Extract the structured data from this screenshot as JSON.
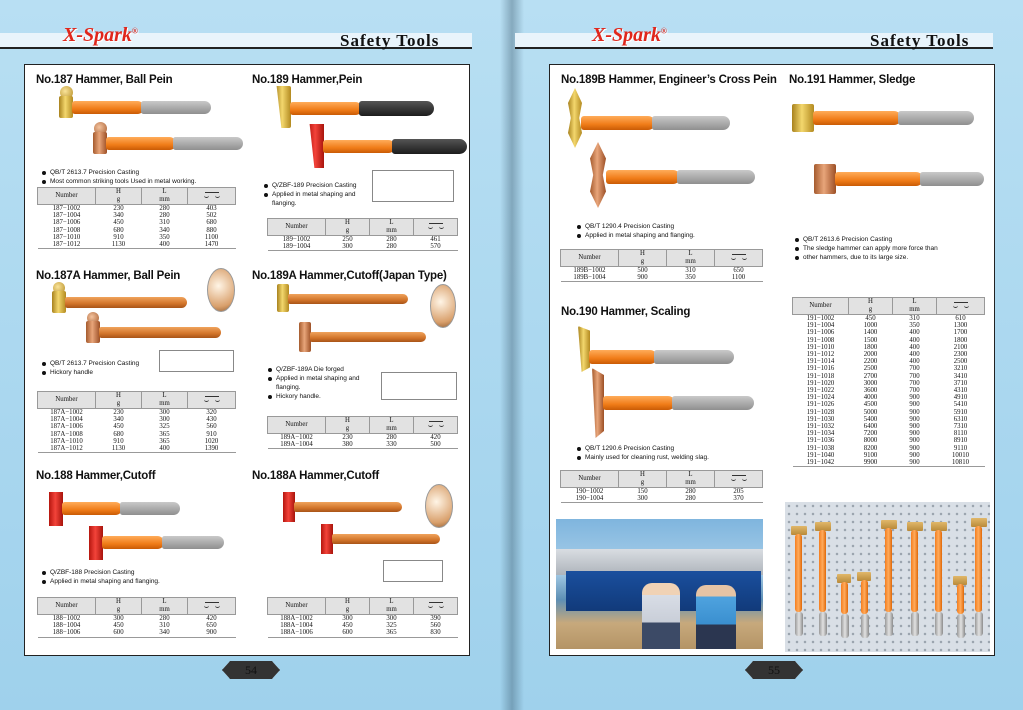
{
  "left_page": {
    "logo": "X-Spark",
    "logo_mark": "®",
    "header": "Safety Tools",
    "page_number": "54",
    "panels": [
      {
        "title": "No.187 Hammer, Ball Pein",
        "bullets": [
          "QB/T 2613.7 Precision Casting",
          "Most common striking tools Used in metal working."
        ],
        "headers": [
          [
            "Number",
            ""
          ],
          [
            "H",
            "g"
          ],
          [
            "L",
            "mm"
          ],
          [
            "",
            ""
          ]
        ],
        "rows": [
          [
            "187−1002",
            "230",
            "280",
            "403"
          ],
          [
            "187−1004",
            "340",
            "280",
            "502"
          ],
          [
            "187−1006",
            "450",
            "310",
            "680"
          ],
          [
            "187−1008",
            "680",
            "340",
            "880"
          ],
          [
            "187−1010",
            "910",
            "350",
            "1100"
          ],
          [
            "187−1012",
            "1130",
            "400",
            "1470"
          ]
        ]
      },
      {
        "title": "No.189 Hammer,Pein",
        "bullets": [
          "Q/ZBF-189  Precision Casting",
          "Applied in metal shaping and",
          "flanging."
        ],
        "headers": [
          [
            "Number",
            ""
          ],
          [
            "H",
            "g"
          ],
          [
            "L",
            "mm"
          ],
          [
            "",
            ""
          ]
        ],
        "rows": [
          [
            "189−1002",
            "250",
            "280",
            "461"
          ],
          [
            "189−1004",
            "300",
            "280",
            "570"
          ]
        ]
      },
      {
        "title": "No.187A Hammer, Ball Pein",
        "bullets": [
          "QB/T 2613.7  Precision Casting",
          "Hickory handle"
        ],
        "headers": [
          [
            "Number",
            ""
          ],
          [
            "H",
            "g"
          ],
          [
            "L",
            "mm"
          ],
          [
            "",
            ""
          ]
        ],
        "rows": [
          [
            "187A−1002",
            "230",
            "300",
            "320"
          ],
          [
            "187A−1004",
            "340",
            "300",
            "430"
          ],
          [
            "187A−1006",
            "450",
            "325",
            "560"
          ],
          [
            "187A−1008",
            "680",
            "365",
            "910"
          ],
          [
            "187A−1010",
            "910",
            "365",
            "1020"
          ],
          [
            "187A−1012",
            "1130",
            "400",
            "1390"
          ]
        ]
      },
      {
        "title": "No.189A Hammer,Cutoff(Japan Type)",
        "bullets": [
          "Q/ZBF-189A  Die forged",
          "Applied in metal shaping and",
          "flanging.",
          "Hickory handle."
        ],
        "headers": [
          [
            "Number",
            ""
          ],
          [
            "H",
            "g"
          ],
          [
            "L",
            "mm"
          ],
          [
            "",
            ""
          ]
        ],
        "rows": [
          [
            "189A−1002",
            "230",
            "280",
            "420"
          ],
          [
            "189A−1004",
            "380",
            "330",
            "500"
          ]
        ]
      },
      {
        "title": "No.188 Hammer,Cutoff",
        "bullets": [
          "Q/ZBF-188   Precision Casting",
          "Applied in metal shaping and flanging."
        ],
        "headers": [
          [
            "Number",
            ""
          ],
          [
            "H",
            "g"
          ],
          [
            "L",
            "mm"
          ],
          [
            "",
            ""
          ]
        ],
        "rows": [
          [
            "188−1002",
            "300",
            "280",
            "420"
          ],
          [
            "188−1004",
            "450",
            "310",
            "650"
          ],
          [
            "188−1006",
            "600",
            "340",
            "900"
          ]
        ]
      },
      {
        "title": "No.188A Hammer,Cutoff",
        "bullets": [],
        "headers": [
          [
            "Number",
            ""
          ],
          [
            "H",
            "g"
          ],
          [
            "L",
            "mm"
          ],
          [
            "",
            ""
          ]
        ],
        "rows": [
          [
            "188A−1002",
            "300",
            "300",
            "390"
          ],
          [
            "188A−1004",
            "450",
            "325",
            "560"
          ],
          [
            "188A−1006",
            "600",
            "365",
            "830"
          ]
        ]
      }
    ]
  },
  "right_page": {
    "logo": "X-Spark",
    "logo_mark": "®",
    "header": "Safety Tools",
    "page_number": "55",
    "panels": [
      {
        "title": "No.189B Hammer, Engineer’s Cross Pein",
        "bullets": [
          "QB/T 1290.4   Precision Casting",
          "Applied in metal shaping and flanging."
        ],
        "headers": [
          [
            "Number",
            ""
          ],
          [
            "H",
            "g"
          ],
          [
            "L",
            "mm"
          ],
          [
            "",
            ""
          ]
        ],
        "rows": [
          [
            "189B−1002",
            "500",
            "310",
            "650"
          ],
          [
            "189B−1004",
            "900",
            "350",
            "1100"
          ]
        ]
      },
      {
        "title": "No.191 Hammer, Sledge",
        "bullets": [
          "QB/T 2613.6       Precision Casting",
          "The sledge hammer can apply more force than",
          "other hammers, due to its large size."
        ],
        "headers": [
          [
            "Number",
            ""
          ],
          [
            "H",
            "g"
          ],
          [
            "L",
            "mm"
          ],
          [
            "",
            ""
          ]
        ],
        "rows": [
          [
            "191−1002",
            "450",
            "310",
            "610"
          ],
          [
            "191−1004",
            "1000",
            "350",
            "1300"
          ],
          [
            "191−1006",
            "1400",
            "400",
            "1700"
          ],
          [
            "191−1008",
            "1500",
            "400",
            "1800"
          ],
          [
            "191−1010",
            "1800",
            "400",
            "2100"
          ],
          [
            "191−1012",
            "2000",
            "400",
            "2300"
          ],
          [
            "191−1014",
            "2200",
            "400",
            "2500"
          ],
          [
            "191−1016",
            "2500",
            "700",
            "3210"
          ],
          [
            "191−1018",
            "2700",
            "700",
            "3410"
          ],
          [
            "191−1020",
            "3000",
            "700",
            "3710"
          ],
          [
            "191−1022",
            "3600",
            "700",
            "4310"
          ],
          [
            "191−1024",
            "4000",
            "900",
            "4910"
          ],
          [
            "191−1026",
            "4500",
            "900",
            "5410"
          ],
          [
            "191−1028",
            "5000",
            "900",
            "5910"
          ],
          [
            "191−1030",
            "5400",
            "900",
            "6310"
          ],
          [
            "191−1032",
            "6400",
            "900",
            "7310"
          ],
          [
            "191−1034",
            "7200",
            "900",
            "8110"
          ],
          [
            "191−1036",
            "8000",
            "900",
            "8910"
          ],
          [
            "191−1038",
            "8200",
            "900",
            "9110"
          ],
          [
            "191−1040",
            "9100",
            "900",
            "10010"
          ],
          [
            "191−1042",
            "9900",
            "900",
            "10810"
          ]
        ]
      },
      {
        "title": "No.190 Hammer, Scaling",
        "bullets": [
          "QB/T 1290.6   Precision Casting",
          "Mainly used for cleaning rust, welding slag."
        ],
        "headers": [
          [
            "Number",
            ""
          ],
          [
            "H",
            "g"
          ],
          [
            "L",
            "mm"
          ],
          [
            "",
            ""
          ]
        ],
        "rows": [
          [
            "190−1002",
            "150",
            "280",
            "205"
          ],
          [
            "190−1004",
            "300",
            "280",
            "370"
          ]
        ]
      }
    ]
  },
  "colors": {
    "background": "#a9d6ee",
    "logo": "#e0261b",
    "table_header": "#e2e2e2",
    "handle_orange": "#f07c18",
    "head_bronze": "#e6c65a",
    "head_copper": "#d58a5c",
    "head_red": "#d9261d"
  }
}
